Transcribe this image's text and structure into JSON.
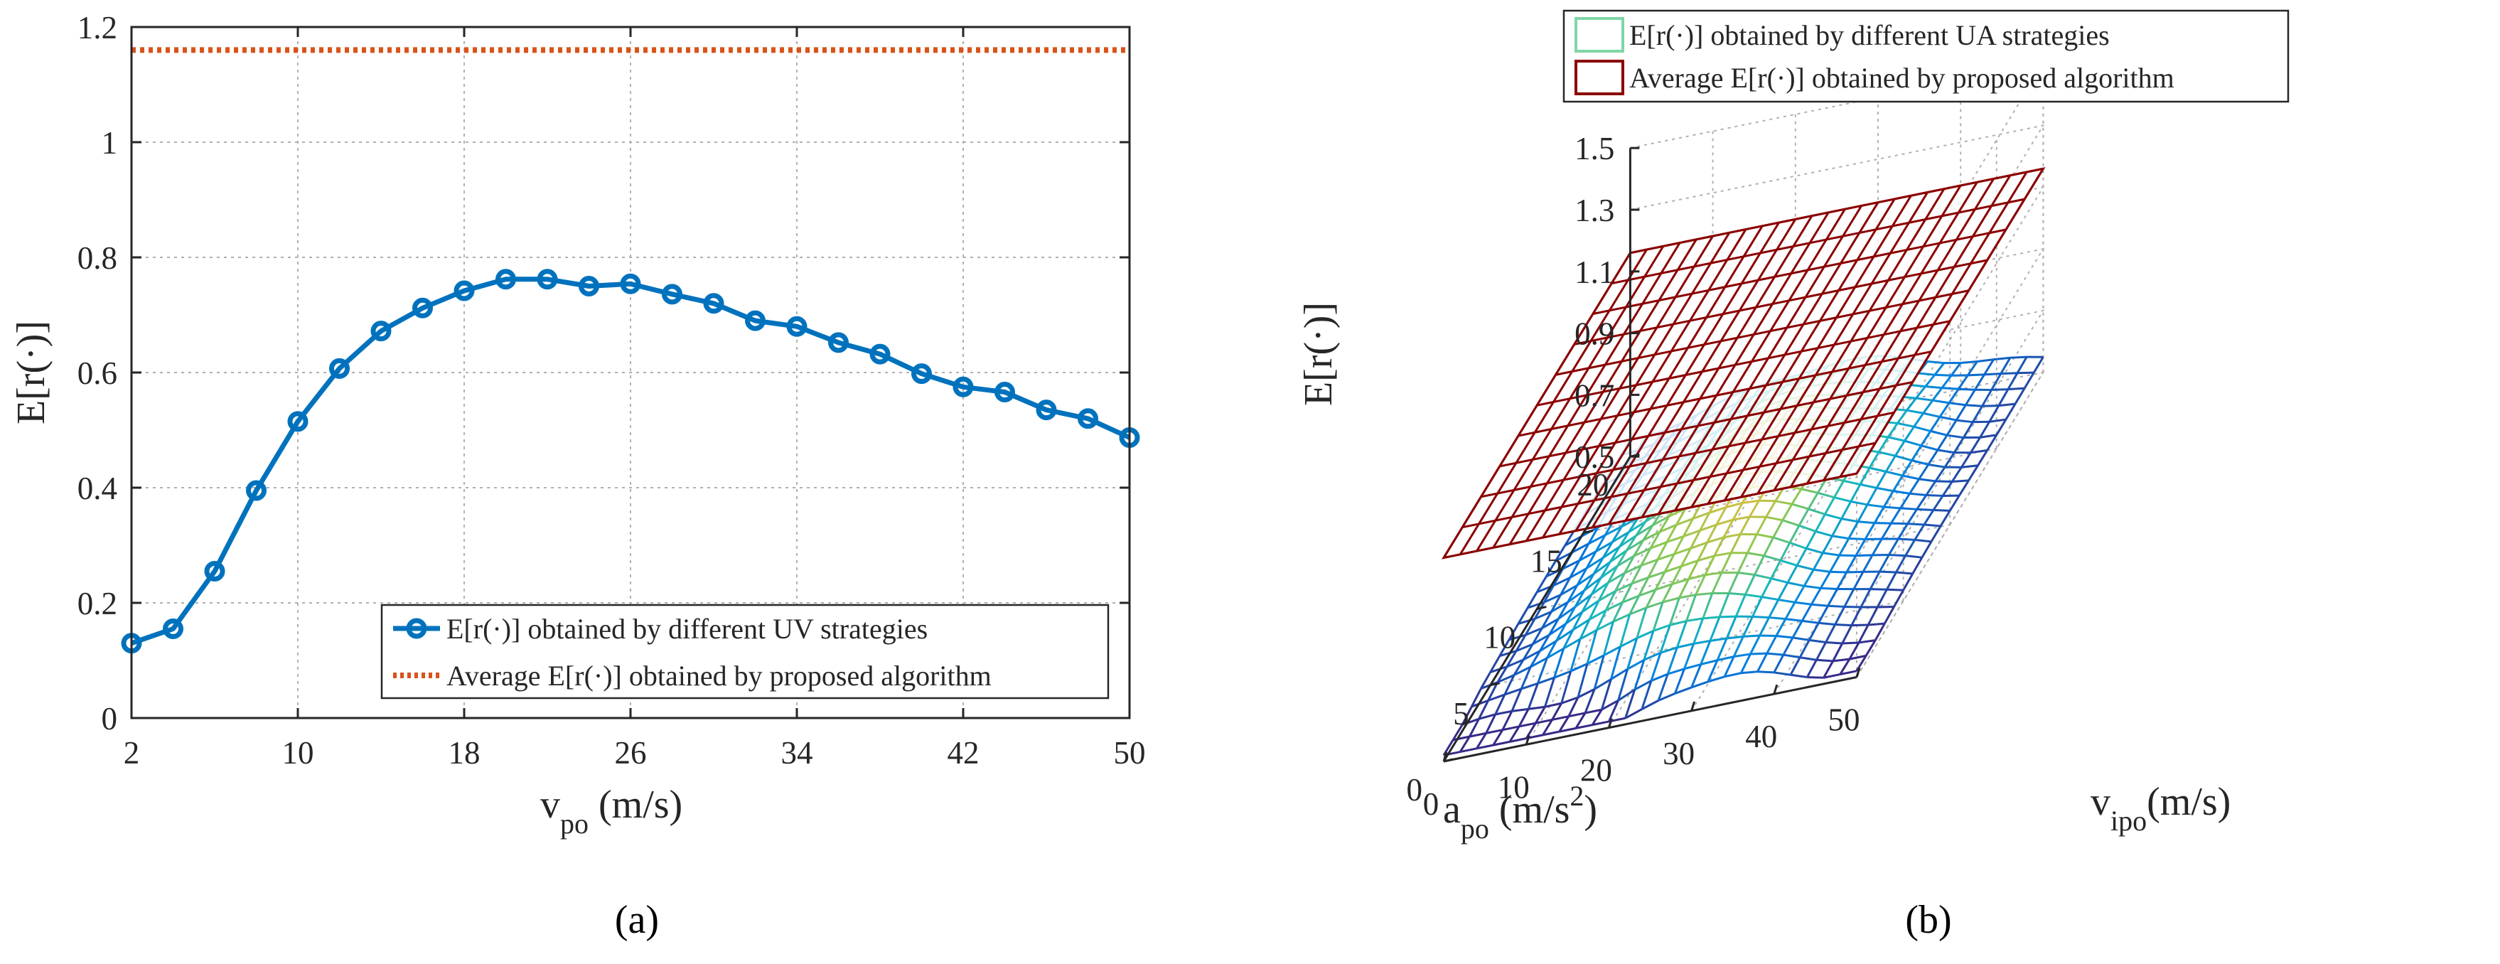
{
  "chart_data": [
    {
      "type": "line",
      "caption": "(a)",
      "xlabel": "v",
      "xlabel_sub": "po",
      "xlabel_unit": "(m/s)",
      "ylabel": "E[r(·)]",
      "x": [
        2,
        4,
        6,
        8,
        10,
        12,
        14,
        16,
        18,
        20,
        22,
        24,
        26,
        28,
        30,
        32,
        34,
        36,
        38,
        40,
        42,
        44,
        46,
        48,
        50
      ],
      "xlim": [
        2,
        50
      ],
      "ylim": [
        0,
        1.2
      ],
      "xticks": [
        2,
        10,
        18,
        26,
        34,
        42,
        50
      ],
      "xtick_labels": [
        "2",
        "10",
        "18",
        "26",
        "34",
        "42",
        "50"
      ],
      "yticks": [
        0,
        0.2,
        0.4,
        0.6,
        0.8,
        1,
        1.2
      ],
      "ytick_labels": [
        "0",
        "0.2",
        "0.4",
        "0.6",
        "0.8",
        "1",
        "1.2"
      ],
      "grid": true,
      "legend_position": "bottom-right",
      "series": [
        {
          "name": "E[r(·)] obtained by different UV strategies",
          "color": "#0072BD",
          "style": "solid-markers",
          "values": [
            0.13,
            0.155,
            0.255,
            0.395,
            0.515,
            0.607,
            0.672,
            0.712,
            0.742,
            0.762,
            0.762,
            0.75,
            0.754,
            0.736,
            0.72,
            0.69,
            0.68,
            0.652,
            0.632,
            0.598,
            0.575,
            0.566,
            0.535,
            0.52,
            0.487
          ]
        },
        {
          "name": "Average E[r(·)] obtained by proposed algorithm",
          "color": "#D95319",
          "style": "dotted",
          "constant": 1.16
        }
      ]
    },
    {
      "type": "surface",
      "caption": "(b)",
      "zlabel": "E[r(·)]",
      "xlabel": "v",
      "xlabel_sub": "ipo",
      "xlabel_unit": "(m/s)",
      "ylabel": "a",
      "ylabel_sub": "po",
      "ylabel_unit": "(m/s",
      "ylabel_sup": "2",
      "ylabel_close": ")",
      "xlim": [
        0,
        50
      ],
      "ylim": [
        0,
        20
      ],
      "zlim": [
        0.5,
        1.5
      ],
      "xticks": [
        0,
        10,
        20,
        30,
        40,
        50
      ],
      "xtick_labels": [
        "0",
        "10",
        "20",
        "30",
        "40",
        "50"
      ],
      "yticks": [
        0,
        5,
        10,
        15,
        20
      ],
      "ytick_labels": [
        "0",
        "5",
        "10",
        "15",
        "20"
      ],
      "zticks": [
        0.5,
        0.7,
        0.9,
        1.1,
        1.3,
        1.5
      ],
      "ztick_labels": [
        "0.5",
        "0.7",
        "0.9",
        "1.1",
        "1.3",
        "1.5"
      ],
      "grid": true,
      "legend_position": "top",
      "series": [
        {
          "name": "E[r(·)] obtained by different UA strategies",
          "color": "#7FD6A6",
          "colormap": "parula"
        },
        {
          "name": "Average E[r(·)] obtained by proposed algorithm",
          "color": "#8B0000",
          "constant": 1.16
        }
      ]
    }
  ]
}
